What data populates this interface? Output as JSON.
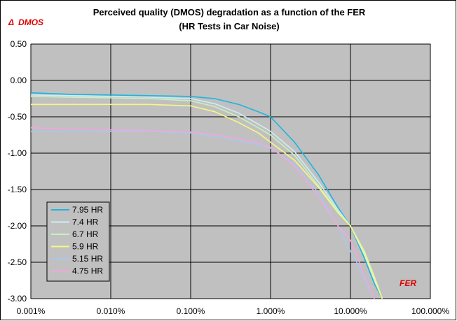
{
  "chart_data": {
    "type": "line",
    "title": "Perceived quality (DMOS) degradation as a function of the FER",
    "subtitle": "(HR Tests in Car Noise)",
    "ylabel": "DMOS",
    "ylabel_symbol": "Δ",
    "xlabel": "FER",
    "x_scale": "log",
    "xlim": [
      0.001,
      100
    ],
    "ylim": [
      -3.0,
      0.5
    ],
    "grid": true,
    "plot_background": "#c0c0c0",
    "legend_position": "bottom-left",
    "x_tick_labels": [
      "0.001%",
      "0.010%",
      "0.100%",
      "1.000%",
      "10.000%",
      "100.000%"
    ],
    "x_tick_values": [
      0.001,
      0.01,
      0.1,
      1,
      10,
      100
    ],
    "y_tick_labels": [
      "0.50",
      "0.00",
      "-0.50",
      "-1.00",
      "-1.50",
      "-2.00",
      "-2.50",
      "-3.00"
    ],
    "y_tick_values": [
      0.5,
      0.0,
      -0.5,
      -1.0,
      -1.5,
      -2.0,
      -2.5,
      -3.0
    ],
    "series": [
      {
        "name": "7.95 HR",
        "color": "#1fb4e0",
        "x": [
          0.001,
          0.003,
          0.01,
          0.03,
          0.1,
          0.2,
          0.4,
          0.7,
          1.0,
          2.0,
          4.0,
          7.0,
          10.0,
          15.0,
          20.0,
          25.0
        ],
        "y": [
          -0.17,
          -0.19,
          -0.2,
          -0.21,
          -0.22,
          -0.25,
          -0.33,
          -0.43,
          -0.5,
          -0.85,
          -1.3,
          -1.75,
          -2.0,
          -2.45,
          -2.8,
          -3.0
        ]
      },
      {
        "name": "7.4 HR",
        "color": "#d0ecf2",
        "x": [
          0.001,
          0.003,
          0.01,
          0.03,
          0.1,
          0.2,
          0.4,
          0.7,
          1.0,
          2.0,
          4.0,
          7.0,
          10.0,
          15.0,
          20.0,
          25.0
        ],
        "y": [
          -0.2,
          -0.21,
          -0.22,
          -0.23,
          -0.25,
          -0.32,
          -0.45,
          -0.6,
          -0.7,
          -0.98,
          -1.4,
          -1.78,
          -2.0,
          -2.4,
          -2.75,
          -3.0
        ]
      },
      {
        "name": "6.7 HR",
        "color": "#c8f0c0",
        "x": [
          0.001,
          0.003,
          0.01,
          0.03,
          0.1,
          0.2,
          0.4,
          0.7,
          1.0,
          2.0,
          4.0,
          7.0,
          10.0,
          15.0,
          20.0,
          25.0
        ],
        "y": [
          -0.22,
          -0.23,
          -0.24,
          -0.25,
          -0.28,
          -0.36,
          -0.5,
          -0.65,
          -0.75,
          -1.03,
          -1.45,
          -1.8,
          -2.0,
          -2.35,
          -2.7,
          -3.0
        ]
      },
      {
        "name": "5.9 HR",
        "color": "#f8f880",
        "x": [
          0.001,
          0.003,
          0.01,
          0.03,
          0.1,
          0.2,
          0.4,
          0.7,
          1.0,
          2.0,
          4.0,
          7.0,
          10.0,
          15.0,
          20.0,
          25.0
        ],
        "y": [
          -0.33,
          -0.33,
          -0.33,
          -0.33,
          -0.35,
          -0.43,
          -0.58,
          -0.72,
          -0.85,
          -1.1,
          -1.47,
          -1.82,
          -2.0,
          -2.38,
          -2.72,
          -3.0
        ]
      },
      {
        "name": "5.15 HR",
        "color": "#a8c8f0",
        "x": [
          0.001,
          0.003,
          0.01,
          0.03,
          0.1,
          0.2,
          0.4,
          0.7,
          1.0,
          2.0,
          4.0,
          7.0,
          10.0,
          12.0,
          15.0,
          20.0
        ],
        "y": [
          -0.7,
          -0.7,
          -0.7,
          -0.7,
          -0.72,
          -0.77,
          -0.83,
          -0.88,
          -0.93,
          -1.15,
          -1.55,
          -2.0,
          -2.35,
          -2.5,
          -2.75,
          -3.0
        ]
      },
      {
        "name": "4.75 HR",
        "color": "#f4a6d8",
        "x": [
          0.001,
          0.003,
          0.01,
          0.03,
          0.1,
          0.2,
          0.4,
          0.7,
          1.0,
          2.0,
          4.0,
          7.0,
          10.0,
          12.0,
          15.0,
          20.0
        ],
        "y": [
          -0.65,
          -0.67,
          -0.68,
          -0.69,
          -0.71,
          -0.75,
          -0.8,
          -0.86,
          -0.92,
          -1.18,
          -1.6,
          -2.0,
          -2.2,
          -2.4,
          -2.7,
          -3.0
        ]
      }
    ]
  }
}
